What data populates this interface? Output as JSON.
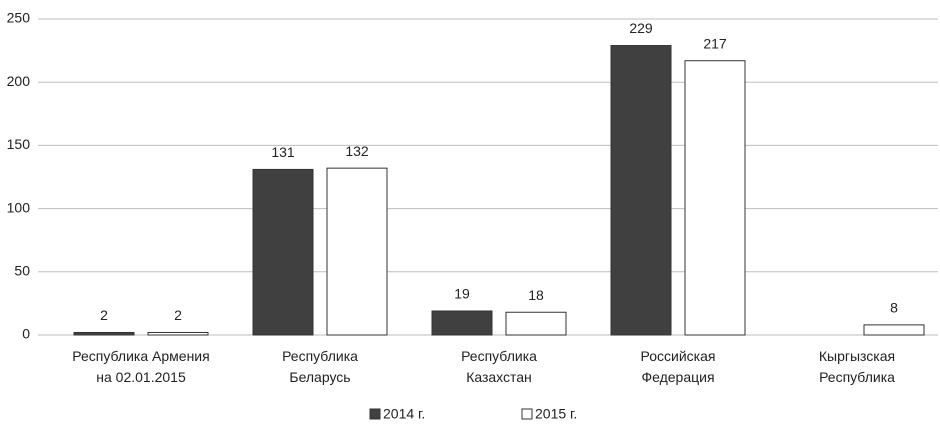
{
  "chart_data": {
    "type": "bar",
    "categories": [
      "Республика Армения\nна 02.01.2015",
      "Республика\nБеларусь",
      "Республика\nКазахстан",
      "Российская\nФедерация",
      "Кыргызская\nРеспублика"
    ],
    "series": [
      {
        "name": "2014 г.",
        "color": "#404040",
        "values": [
          2,
          131,
          19,
          229,
          null
        ]
      },
      {
        "name": "2015 г.",
        "color": "#ffffff",
        "values": [
          2,
          132,
          18,
          217,
          8
        ]
      }
    ],
    "ylim": [
      0,
      250
    ],
    "yticks": [
      0,
      50,
      100,
      150,
      200,
      250
    ],
    "grid": true,
    "legend": "bottom"
  }
}
